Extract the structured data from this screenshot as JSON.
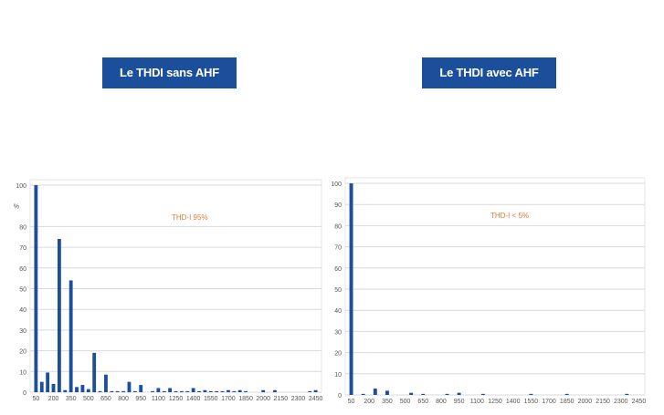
{
  "titles": {
    "left": "Le THDI sans AHF",
    "right": "Le THDI avec AHF"
  },
  "colors": {
    "bar": "#1b4f9c",
    "annotation": "#e07a2e",
    "grid": "#d9d9d9",
    "axis_text": "#555555"
  },
  "chart_data": [
    {
      "type": "bar",
      "title": "",
      "annotation": "THD-I 95%",
      "unit_label": "%",
      "x_tick_labels": [
        "50",
        "200",
        "350",
        "500",
        "650",
        "800",
        "950",
        "1100",
        "1250",
        "1400",
        "1550",
        "1700",
        "1850",
        "2000",
        "2150",
        "2300",
        "2450"
      ],
      "y_ticks": [
        0,
        10,
        20,
        30,
        40,
        50,
        60,
        70,
        80,
        100
      ],
      "ylim": [
        0,
        100
      ],
      "xlim": [
        0,
        2500
      ],
      "grid": true,
      "x": [
        50,
        100,
        150,
        200,
        250,
        300,
        350,
        400,
        450,
        500,
        550,
        600,
        650,
        700,
        750,
        800,
        850,
        900,
        950,
        1000,
        1050,
        1100,
        1150,
        1200,
        1250,
        1300,
        1350,
        1400,
        1450,
        1500,
        1550,
        1600,
        1650,
        1700,
        1750,
        1800,
        1850,
        1900,
        1950,
        2000,
        2050,
        2100,
        2150,
        2200,
        2250,
        2300,
        2350,
        2400,
        2450
      ],
      "values": [
        100,
        5,
        9.5,
        4,
        74,
        1,
        54,
        2.5,
        3.5,
        1.5,
        19,
        0.5,
        8.5,
        0.5,
        0.5,
        0.5,
        5,
        0.5,
        3.5,
        0,
        0.5,
        2,
        0.5,
        2,
        0.5,
        0.5,
        0.5,
        2,
        0.5,
        1,
        0.5,
        0.5,
        0.5,
        1,
        0.5,
        1,
        0.5,
        0,
        0,
        1,
        0,
        1,
        0,
        0,
        0,
        0,
        0,
        0.5,
        1
      ]
    },
    {
      "type": "bar",
      "title": "",
      "annotation": "THD-I < 5%",
      "unit_label": "",
      "x_tick_labels": [
        "50",
        "200",
        "350",
        "500",
        "650",
        "800",
        "950",
        "1100",
        "1250",
        "1400",
        "1550",
        "1700",
        "1850",
        "2000",
        "2150",
        "2300",
        "2450"
      ],
      "y_ticks": [
        0,
        10,
        20,
        30,
        40,
        50,
        60,
        70,
        80,
        90,
        100
      ],
      "ylim": [
        0,
        100
      ],
      "xlim": [
        0,
        2500
      ],
      "grid": true,
      "x": [
        50,
        100,
        150,
        200,
        250,
        300,
        350,
        400,
        450,
        500,
        550,
        600,
        650,
        700,
        750,
        800,
        850,
        900,
        950,
        1000,
        1050,
        1100,
        1150,
        1200,
        1250,
        1300,
        1350,
        1400,
        1450,
        1500,
        1550,
        1600,
        1650,
        1700,
        1750,
        1800,
        1850,
        1900,
        1950,
        2000,
        2050,
        2100,
        2150,
        2200,
        2250,
        2300,
        2350,
        2400,
        2450
      ],
      "values": [
        100,
        0,
        0.5,
        0,
        3,
        0,
        2,
        0,
        0,
        0,
        1,
        0,
        0.5,
        0,
        0,
        0,
        0.5,
        0,
        1,
        0,
        0,
        0,
        0.5,
        0,
        0,
        0,
        0,
        0,
        0,
        0,
        0.5,
        0,
        0,
        0,
        0,
        0,
        0.5,
        0,
        0,
        0,
        0,
        0,
        0,
        0,
        0,
        0,
        0.5,
        0,
        0
      ]
    }
  ]
}
